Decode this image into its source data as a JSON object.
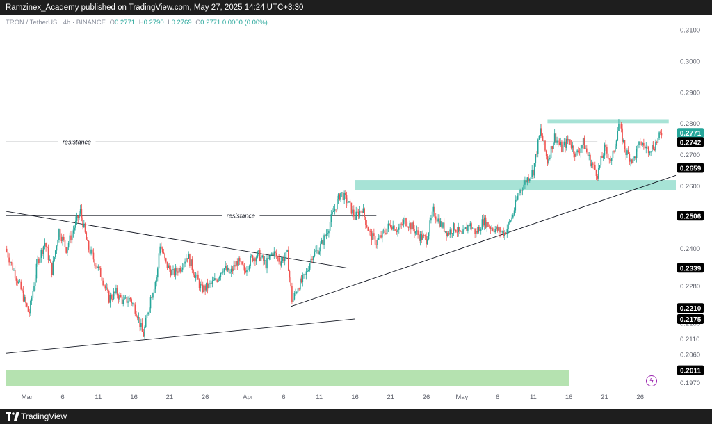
{
  "header": {
    "published": "Ramzinex_Academy published on TradingView.com, May 27, 2025 14:24 UTC+3:30"
  },
  "legend": {
    "symbol": "TRON / TetherUS · 4h · BINANCE",
    "o_label": "O",
    "o": "0.2771",
    "h_label": "H",
    "h": "0.2790",
    "l_label": "L",
    "l": "0.2769",
    "c_label": "C",
    "c": "0.2771",
    "change": "0.0000 (0.00%)"
  },
  "footer": {
    "brand": "TradingView"
  },
  "colors": {
    "up": "#26a69a",
    "down": "#ef5350",
    "zone_teal": "#a7e3d6",
    "zone_green": "#b5e2b0",
    "line": "#131722",
    "price_tag": "#26a69a",
    "level_tag": "#000000"
  },
  "chart_data": {
    "type": "candlestick",
    "symbol": "TRON / TetherUS",
    "interval": "4h",
    "exchange": "BINANCE",
    "y_range": [
      0.195,
      0.313
    ],
    "y_ticks": [
      "0.3100",
      "0.3000",
      "0.2900",
      "0.2800",
      "0.2700",
      "0.2600",
      "0.2400",
      "0.2280",
      "0.2160",
      "0.2110",
      "0.2060",
      "0.1970"
    ],
    "x_ticks": [
      {
        "label": "Mar",
        "day": 0
      },
      {
        "label": "6",
        "day": 5
      },
      {
        "label": "11",
        "day": 10
      },
      {
        "label": "16",
        "day": 15
      },
      {
        "label": "21",
        "day": 20
      },
      {
        "label": "26",
        "day": 25
      },
      {
        "label": "Apr",
        "day": 31
      },
      {
        "label": "6",
        "day": 36
      },
      {
        "label": "11",
        "day": 41
      },
      {
        "label": "16",
        "day": 46
      },
      {
        "label": "21",
        "day": 51
      },
      {
        "label": "26",
        "day": 56
      },
      {
        "label": "May",
        "day": 61
      },
      {
        "label": "6",
        "day": 66
      },
      {
        "label": "11",
        "day": 71
      },
      {
        "label": "16",
        "day": 76
      },
      {
        "label": "21",
        "day": 81
      },
      {
        "label": "26",
        "day": 86
      }
    ],
    "x_range_days": [
      -3,
      91
    ],
    "price_path": [
      [
        -3,
        0.24
      ],
      [
        -1,
        0.228
      ],
      [
        0.3,
        0.219
      ],
      [
        1.5,
        0.236
      ],
      [
        2.5,
        0.242
      ],
      [
        3.5,
        0.233
      ],
      [
        4.5,
        0.246
      ],
      [
        5.5,
        0.24
      ],
      [
        6.5,
        0.246
      ],
      [
        7.5,
        0.252
      ],
      [
        8.5,
        0.241
      ],
      [
        9.5,
        0.236
      ],
      [
        10.5,
        0.231
      ],
      [
        11.5,
        0.224
      ],
      [
        12.5,
        0.226
      ],
      [
        13.5,
        0.223
      ],
      [
        14.5,
        0.224
      ],
      [
        15.5,
        0.219
      ],
      [
        16.3,
        0.212
      ],
      [
        17.3,
        0.224
      ],
      [
        18.3,
        0.232
      ],
      [
        18.6,
        0.242
      ],
      [
        19.5,
        0.235
      ],
      [
        20.5,
        0.232
      ],
      [
        21.5,
        0.234
      ],
      [
        22.5,
        0.238
      ],
      [
        23.5,
        0.232
      ],
      [
        24.5,
        0.227
      ],
      [
        25.5,
        0.228
      ],
      [
        26.5,
        0.23
      ],
      [
        27.5,
        0.234
      ],
      [
        28.5,
        0.232
      ],
      [
        29.5,
        0.236
      ],
      [
        30.5,
        0.233
      ],
      [
        31.5,
        0.237
      ],
      [
        32.5,
        0.238
      ],
      [
        33.5,
        0.235
      ],
      [
        34.5,
        0.239
      ],
      [
        35.5,
        0.236
      ],
      [
        36.5,
        0.238
      ],
      [
        37.2,
        0.223
      ],
      [
        38,
        0.228
      ],
      [
        39,
        0.231
      ],
      [
        40,
        0.238
      ],
      [
        41,
        0.24
      ],
      [
        42,
        0.245
      ],
      [
        43,
        0.252
      ],
      [
        44,
        0.258
      ],
      [
        45,
        0.255
      ],
      [
        46,
        0.25
      ],
      [
        47,
        0.253
      ],
      [
        48,
        0.245
      ],
      [
        49,
        0.242
      ],
      [
        50,
        0.245
      ],
      [
        51,
        0.248
      ],
      [
        52,
        0.246
      ],
      [
        53,
        0.249
      ],
      [
        54,
        0.247
      ],
      [
        55,
        0.244
      ],
      [
        56,
        0.243
      ],
      [
        57,
        0.252
      ],
      [
        58,
        0.248
      ],
      [
        59,
        0.245
      ],
      [
        60,
        0.247
      ],
      [
        61,
        0.244
      ],
      [
        62,
        0.248
      ],
      [
        63,
        0.245
      ],
      [
        64,
        0.249
      ],
      [
        65,
        0.247
      ],
      [
        66,
        0.246
      ],
      [
        67,
        0.245
      ],
      [
        68,
        0.25
      ],
      [
        69,
        0.258
      ],
      [
        70,
        0.262
      ],
      [
        71,
        0.265
      ],
      [
        72,
        0.278
      ],
      [
        73,
        0.268
      ],
      [
        74,
        0.276
      ],
      [
        75,
        0.272
      ],
      [
        76,
        0.275
      ],
      [
        77,
        0.27
      ],
      [
        78,
        0.274
      ],
      [
        79,
        0.268
      ],
      [
        80,
        0.264
      ],
      [
        81,
        0.272
      ],
      [
        82,
        0.268
      ],
      [
        83,
        0.28
      ],
      [
        84,
        0.271
      ],
      [
        85,
        0.268
      ],
      [
        86,
        0.274
      ],
      [
        87,
        0.272
      ],
      [
        88,
        0.273
      ],
      [
        89,
        0.2771
      ]
    ],
    "current_price": {
      "label": "0.2771",
      "value": 0.2771
    },
    "level_tags": [
      {
        "label": "0.2742",
        "value": 0.2742
      },
      {
        "label": "0.2659",
        "value": 0.2659
      },
      {
        "label": "0.2506",
        "value": 0.2506
      },
      {
        "label": "0.2339",
        "value": 0.2339
      },
      {
        "label": "0.2210",
        "value": 0.221
      },
      {
        "label": "0.2175",
        "value": 0.2175
      },
      {
        "label": "0.2011",
        "value": 0.2011
      }
    ],
    "annotations": [
      {
        "text": "resistance",
        "day": 7,
        "value": 0.2742
      },
      {
        "text": "resistance",
        "day": 30,
        "value": 0.2506
      }
    ],
    "horizontal_lines": [
      {
        "from_day": -3,
        "to_day": 80,
        "value": 0.2742
      },
      {
        "from_day": -3,
        "to_day": 49,
        "value": 0.2506
      }
    ],
    "trend_lines": [
      {
        "from": [
          -3,
          0.252
        ],
        "to": [
          45,
          0.2338
        ]
      },
      {
        "from": [
          -3,
          0.2065
        ],
        "to": [
          46,
          0.2175
        ]
      },
      {
        "from": [
          37,
          0.2215
        ],
        "to": [
          91,
          0.2635
        ]
      }
    ],
    "zones": [
      {
        "color": "teal",
        "from_day": 73,
        "to_day": 90,
        "low": 0.2802,
        "high": 0.2815
      },
      {
        "color": "teal",
        "from_day": 46,
        "to_day": 91,
        "low": 0.2588,
        "high": 0.262
      },
      {
        "color": "green",
        "from_day": -3,
        "to_day": 76,
        "low": 0.196,
        "high": 0.2011
      }
    ]
  }
}
